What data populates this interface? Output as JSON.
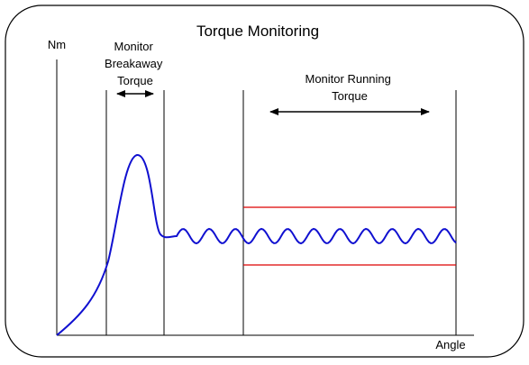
{
  "title": "Torque Monitoring",
  "y_axis_label": "Nm",
  "x_axis_label": "Angle",
  "breakaway_label": {
    "lines": [
      "Monitor",
      "Breakaway",
      "Torque"
    ]
  },
  "running_label": {
    "lines": [
      "Monitor Running",
      "Torque"
    ]
  }
}
